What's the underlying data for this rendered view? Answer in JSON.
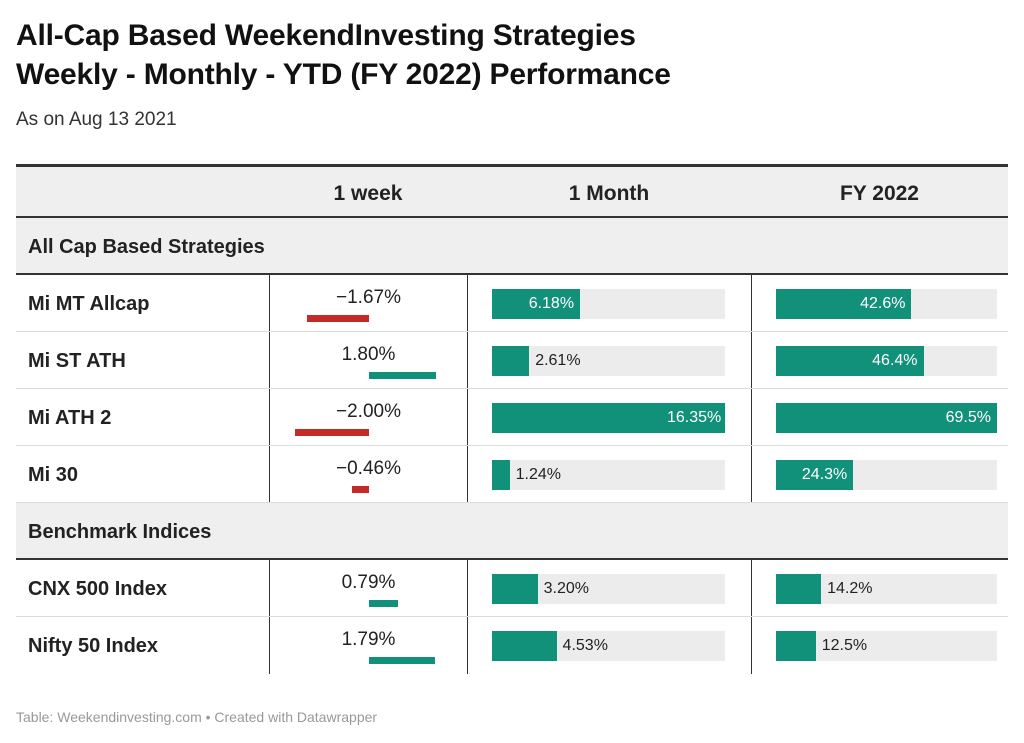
{
  "title_line1": "All-Cap Based WeekendInvesting Strategies",
  "title_line2": "Weekly - Monthly - YTD (FY 2022)  Performance",
  "subtitle": "As on Aug 13 2021",
  "footer": "Table: Weekendinvesting.com • Created with Datawrapper",
  "colors": {
    "positive": "#12917a",
    "negative": "#c42a27",
    "track": "#ececec"
  },
  "chart_data": {
    "type": "table",
    "columns": [
      "",
      "1 week",
      "1 Month",
      "FY 2022"
    ],
    "groups": [
      {
        "name": "All Cap Based Strategies",
        "rows": [
          {
            "name": "Mi MT Allcap",
            "week": -1.67,
            "week_label": "−1.67%",
            "month": 6.18,
            "month_label": "6.18%",
            "fy": 42.6,
            "fy_label": "42.6%"
          },
          {
            "name": "Mi ST ATH",
            "week": 1.8,
            "week_label": "1.80%",
            "month": 2.61,
            "month_label": "2.61%",
            "fy": 46.4,
            "fy_label": "46.4%"
          },
          {
            "name": "Mi ATH 2",
            "week": -2.0,
            "week_label": "−2.00%",
            "month": 16.35,
            "month_label": "16.35%",
            "fy": 69.5,
            "fy_label": "69.5%"
          },
          {
            "name": "Mi 30",
            "week": -0.46,
            "week_label": "−0.46%",
            "month": 1.24,
            "month_label": "1.24%",
            "fy": 24.3,
            "fy_label": "24.3%"
          }
        ]
      },
      {
        "name": "Benchmark Indices",
        "rows": [
          {
            "name": "CNX 500 Index",
            "week": 0.79,
            "week_label": "0.79%",
            "month": 3.2,
            "month_label": "3.20%",
            "fy": 14.2,
            "fy_label": "14.2%"
          },
          {
            "name": "Nifty 50 Index",
            "week": 1.79,
            "week_label": "1.79%",
            "month": 4.53,
            "month_label": "4.53%",
            "fy": 12.5,
            "fy_label": "12.5%"
          }
        ]
      }
    ],
    "scales": {
      "week_max_abs": 2.0,
      "month_max": 16.35,
      "fy_max": 69.5
    }
  }
}
